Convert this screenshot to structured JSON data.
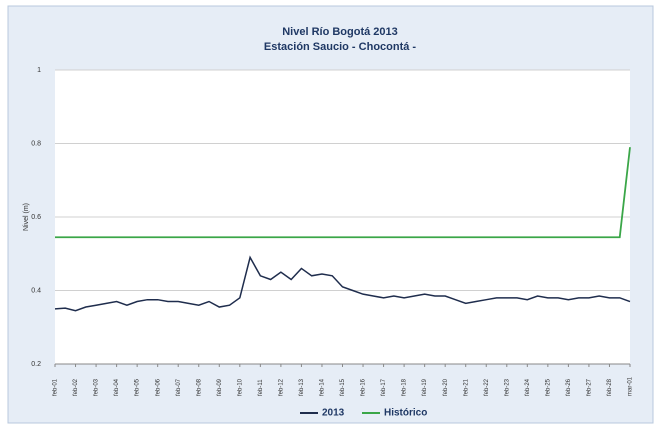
{
  "chart_data": {
    "type": "line",
    "title": "Nivel Río Bogotá  2013",
    "subtitle": "Estación Saucio - Chocontá -",
    "y_label": "Nivel (m)",
    "x": [
      0,
      0.5,
      1,
      1.5,
      2,
      2.5,
      3,
      3.5,
      4,
      4.5,
      5,
      5.5,
      6,
      6.5,
      7,
      7.5,
      8,
      8.5,
      9,
      9.5,
      10,
      10.5,
      11,
      11.5,
      12,
      12.5,
      13,
      13.5,
      14,
      14.5,
      15,
      15.5,
      16,
      16.5,
      17,
      17.5,
      18,
      18.5,
      19,
      19.5,
      20,
      20.5,
      21,
      21.5,
      22,
      22.5,
      23,
      23.5,
      24,
      24.5,
      25,
      25.5,
      26,
      26.5,
      27,
      27.5,
      28
    ],
    "series": [
      {
        "name": "2013",
        "color": "#1f2d4d",
        "values": [
          0.35,
          0.352,
          0.345,
          0.355,
          0.36,
          0.365,
          0.37,
          0.36,
          0.37,
          0.375,
          0.375,
          0.37,
          0.37,
          0.365,
          0.36,
          0.37,
          0.355,
          0.36,
          0.38,
          0.49,
          0.44,
          0.43,
          0.45,
          0.43,
          0.46,
          0.44,
          0.445,
          0.44,
          0.41,
          0.4,
          0.39,
          0.385,
          0.38,
          0.385,
          0.38,
          0.385,
          0.39,
          0.385,
          0.385,
          0.375,
          0.365,
          0.37,
          0.375,
          0.38,
          0.38,
          0.38,
          0.375,
          0.385,
          0.38,
          0.38,
          0.375,
          0.38,
          0.38,
          0.385,
          0.38,
          0.38,
          0.37
        ]
      },
      {
        "name": "Histórico",
        "color": "#3aa648",
        "values": [
          0.545,
          0.545,
          0.545,
          0.545,
          0.545,
          0.545,
          0.545,
          0.545,
          0.545,
          0.545,
          0.545,
          0.545,
          0.545,
          0.545,
          0.545,
          0.545,
          0.545,
          0.545,
          0.545,
          0.545,
          0.545,
          0.545,
          0.545,
          0.545,
          0.545,
          0.545,
          0.545,
          0.545,
          0.545,
          0.545,
          0.545,
          0.545,
          0.545,
          0.545,
          0.545,
          0.545,
          0.545,
          0.545,
          0.545,
          0.545,
          0.545,
          0.545,
          0.545,
          0.545,
          0.545,
          0.545,
          0.545,
          0.545,
          0.545,
          0.545,
          0.545,
          0.545,
          0.545,
          0.545,
          0.545,
          0.545,
          0.79
        ]
      }
    ],
    "xlim": [
      0,
      28
    ],
    "xticks": [
      {
        "value": 0,
        "label": "feb-01"
      },
      {
        "value": 1,
        "label": "feb-02"
      },
      {
        "value": 2,
        "label": "feb-03"
      },
      {
        "value": 3,
        "label": "feb-04"
      },
      {
        "value": 4,
        "label": "feb-05"
      },
      {
        "value": 5,
        "label": "feb-06"
      },
      {
        "value": 6,
        "label": "feb-07"
      },
      {
        "value": 7,
        "label": "feb-08"
      },
      {
        "value": 8,
        "label": "feb-09"
      },
      {
        "value": 9,
        "label": "feb-10"
      },
      {
        "value": 10,
        "label": "feb-11"
      },
      {
        "value": 11,
        "label": "feb-12"
      },
      {
        "value": 12,
        "label": "feb-13"
      },
      {
        "value": 13,
        "label": "feb-14"
      },
      {
        "value": 14,
        "label": "feb-15"
      },
      {
        "value": 15,
        "label": "feb-16"
      },
      {
        "value": 16,
        "label": "feb-17"
      },
      {
        "value": 17,
        "label": "feb-18"
      },
      {
        "value": 18,
        "label": "feb-19"
      },
      {
        "value": 19,
        "label": "feb-20"
      },
      {
        "value": 20,
        "label": "feb-21"
      },
      {
        "value": 21,
        "label": "feb-22"
      },
      {
        "value": 22,
        "label": "feb-23"
      },
      {
        "value": 23,
        "label": "feb-24"
      },
      {
        "value": 24,
        "label": "feb-25"
      },
      {
        "value": 25,
        "label": "feb-26"
      },
      {
        "value": 26,
        "label": "feb-27"
      },
      {
        "value": 27,
        "label": "feb-28"
      },
      {
        "value": 28,
        "label": "mar-01"
      }
    ],
    "ylim": [
      0.2,
      1
    ],
    "yticks": [
      0.2,
      0.4,
      0.6,
      0.8,
      1
    ],
    "grid": true,
    "legend": "bottom"
  }
}
